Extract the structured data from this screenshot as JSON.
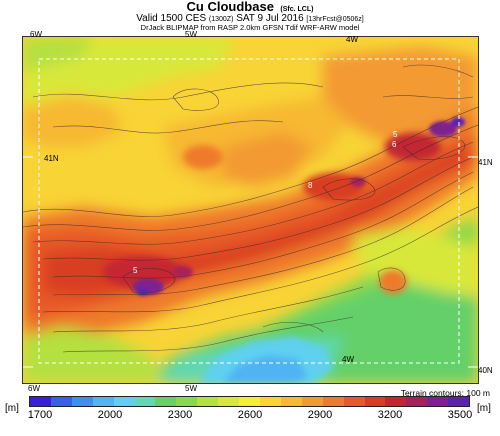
{
  "header": {
    "title": "Cu Cloudbase",
    "title_suffix": "(Sfc. LCL)",
    "subtitle_main": "Valid 1500 CES",
    "subtitle_z": "(1300Z)",
    "subtitle_date": "SAT 9 Jul 2016",
    "subtitle_fcst": "[13hrFcst@0506z]",
    "credit": "DrJack BLIPMAP from RASP 2.0km GFSN Tdif WRF-ARW model"
  },
  "map": {
    "longitude_labels": {
      "top_6w": "6W",
      "top_5w": "5W",
      "top_4w": "4W",
      "bottom_6w": "6W",
      "bottom_5w": "5W",
      "inner_4w": "4W"
    },
    "latitude_labels": {
      "left_41n": "41N",
      "right_41n": "41N",
      "right_40n": "40N"
    },
    "contour_labels": [
      "5",
      "6",
      "8",
      "5"
    ],
    "terrain_note": "Terrain contours: 100 m"
  },
  "legend": {
    "unit": "[m]",
    "ticks": [
      "1700",
      "2000",
      "2300",
      "2600",
      "2900",
      "3200",
      "3500"
    ],
    "colors": [
      "#3a1fd8",
      "#3c5ee6",
      "#3f8ff0",
      "#4fb4f4",
      "#5fd0f0",
      "#5fd8b4",
      "#63d06a",
      "#8ad84a",
      "#b4e040",
      "#d8e83a",
      "#f4ee3a",
      "#f8d436",
      "#f7b833",
      "#f39a30",
      "#ee7a2c",
      "#e75a27",
      "#d93c24",
      "#c42530",
      "#a8205a",
      "#7e2190",
      "#5a22b0"
    ]
  }
}
